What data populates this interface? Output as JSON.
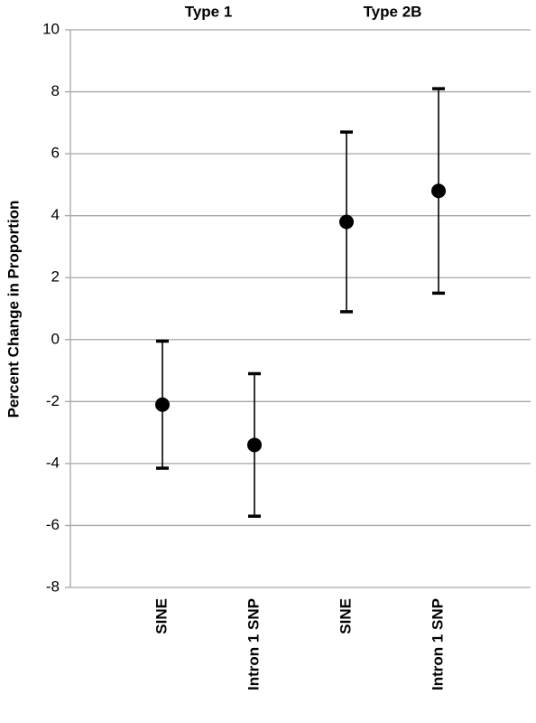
{
  "chart_data": {
    "type": "errorbar",
    "groups": [
      "Type 1",
      "Type 2B"
    ],
    "categories": [
      "SINE",
      "Intron 1 SNP",
      "SINE",
      "Intron 1 SNP"
    ],
    "values": [
      -2.1,
      -3.4,
      3.8,
      4.8
    ],
    "errors": [
      2.05,
      2.3,
      2.9,
      3.3
    ],
    "color": "#000000",
    "y_label": "Percent Change in Proportion",
    "ylim": [
      -8,
      10
    ],
    "yticks": [
      -8,
      -6,
      -4,
      -2,
      0,
      2,
      4,
      6,
      8,
      10
    ],
    "grid": true
  }
}
